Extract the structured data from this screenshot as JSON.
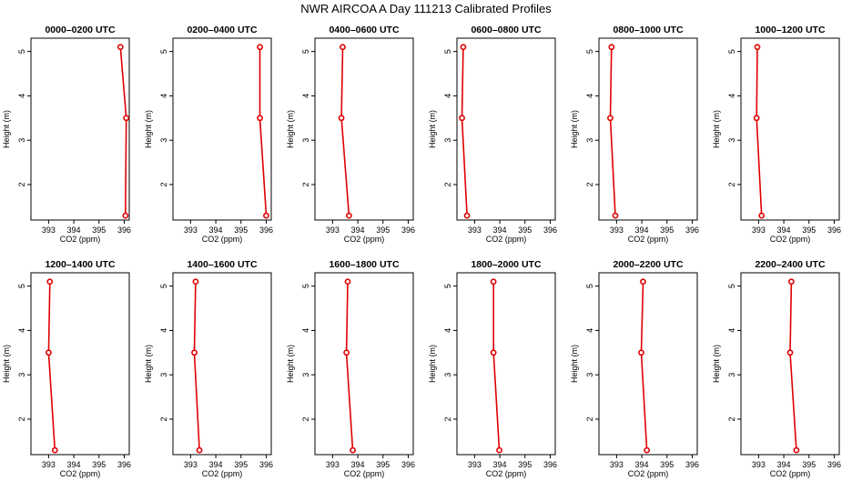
{
  "figure": {
    "title": "NWR AIRCOA A  Day 111213  Calibrated Profiles"
  },
  "chart_data": [
    {
      "type": "line",
      "title": "0000–0200 UTC",
      "xlabel": "CO2 (ppm)",
      "ylabel": "Height (m)",
      "xlim": [
        392.3,
        396.2
      ],
      "ylim": [
        1.2,
        5.3
      ],
      "xticks": [
        393,
        394,
        395,
        396
      ],
      "yticks": [
        2,
        3,
        4,
        5
      ],
      "x": [
        395.85,
        396.08,
        396.05
      ],
      "y": [
        5.1,
        3.5,
        1.3
      ]
    },
    {
      "type": "line",
      "title": "0200–0400 UTC",
      "xlabel": "CO2 (ppm)",
      "ylabel": "Height (m)",
      "xlim": [
        392.3,
        396.2
      ],
      "ylim": [
        1.2,
        5.3
      ],
      "xticks": [
        393,
        394,
        395,
        396
      ],
      "yticks": [
        2,
        3,
        4,
        5
      ],
      "x": [
        395.75,
        395.75,
        396.0
      ],
      "y": [
        5.1,
        3.5,
        1.3
      ]
    },
    {
      "type": "line",
      "title": "0400–0600 UTC",
      "xlabel": "CO2 (ppm)",
      "ylabel": "Height (m)",
      "xlim": [
        392.3,
        396.2
      ],
      "ylim": [
        1.2,
        5.3
      ],
      "xticks": [
        393,
        394,
        395,
        396
      ],
      "yticks": [
        2,
        3,
        4,
        5
      ],
      "x": [
        393.4,
        393.35,
        393.65
      ],
      "y": [
        5.1,
        3.5,
        1.3
      ]
    },
    {
      "type": "line",
      "title": "0600–0800 UTC",
      "xlabel": "CO2 (ppm)",
      "ylabel": "Height (m)",
      "xlim": [
        392.3,
        396.2
      ],
      "ylim": [
        1.2,
        5.3
      ],
      "xticks": [
        393,
        394,
        395,
        396
      ],
      "yticks": [
        2,
        3,
        4,
        5
      ],
      "x": [
        392.55,
        392.5,
        392.7
      ],
      "y": [
        5.1,
        3.5,
        1.3
      ]
    },
    {
      "type": "line",
      "title": "0800–1000 UTC",
      "xlabel": "CO2 (ppm)",
      "ylabel": "Height (m)",
      "xlim": [
        392.3,
        396.2
      ],
      "ylim": [
        1.2,
        5.3
      ],
      "xticks": [
        393,
        394,
        395,
        396
      ],
      "yticks": [
        2,
        3,
        4,
        5
      ],
      "x": [
        392.8,
        392.75,
        392.95
      ],
      "y": [
        5.1,
        3.5,
        1.3
      ]
    },
    {
      "type": "line",
      "title": "1000–1200 UTC",
      "xlabel": "CO2 (ppm)",
      "ylabel": "Height (m)",
      "xlim": [
        392.3,
        396.2
      ],
      "ylim": [
        1.2,
        5.3
      ],
      "xticks": [
        393,
        394,
        395,
        396
      ],
      "yticks": [
        2,
        3,
        4,
        5
      ],
      "x": [
        392.95,
        392.92,
        393.12
      ],
      "y": [
        5.1,
        3.5,
        1.3
      ]
    },
    {
      "type": "line",
      "title": "1200–1400 UTC",
      "xlabel": "CO2 (ppm)",
      "ylabel": "Height (m)",
      "xlim": [
        392.3,
        396.2
      ],
      "ylim": [
        1.2,
        5.3
      ],
      "xticks": [
        393,
        394,
        395,
        396
      ],
      "yticks": [
        2,
        3,
        4,
        5
      ],
      "x": [
        393.05,
        393.0,
        393.25
      ],
      "y": [
        5.1,
        3.5,
        1.3
      ]
    },
    {
      "type": "line",
      "title": "1400–1600 UTC",
      "xlabel": "CO2 (ppm)",
      "ylabel": "Height (m)",
      "xlim": [
        392.3,
        396.2
      ],
      "ylim": [
        1.2,
        5.3
      ],
      "xticks": [
        393,
        394,
        395,
        396
      ],
      "yticks": [
        2,
        3,
        4,
        5
      ],
      "x": [
        393.2,
        393.15,
        393.35
      ],
      "y": [
        5.1,
        3.5,
        1.3
      ]
    },
    {
      "type": "line",
      "title": "1600–1800 UTC",
      "xlabel": "CO2 (ppm)",
      "ylabel": "Height (m)",
      "xlim": [
        392.3,
        396.2
      ],
      "ylim": [
        1.2,
        5.3
      ],
      "xticks": [
        393,
        394,
        395,
        396
      ],
      "yticks": [
        2,
        3,
        4,
        5
      ],
      "x": [
        393.6,
        393.55,
        393.8
      ],
      "y": [
        5.1,
        3.5,
        1.3
      ]
    },
    {
      "type": "line",
      "title": "1800–2000 UTC",
      "xlabel": "CO2 (ppm)",
      "ylabel": "Height (m)",
      "xlim": [
        392.3,
        396.2
      ],
      "ylim": [
        1.2,
        5.3
      ],
      "xticks": [
        393,
        394,
        395,
        396
      ],
      "yticks": [
        2,
        3,
        4,
        5
      ],
      "x": [
        393.75,
        393.75,
        393.98
      ],
      "y": [
        5.1,
        3.5,
        1.3
      ]
    },
    {
      "type": "line",
      "title": "2000–2200 UTC",
      "xlabel": "CO2 (ppm)",
      "ylabel": "Height (m)",
      "xlim": [
        392.3,
        396.2
      ],
      "ylim": [
        1.2,
        5.3
      ],
      "xticks": [
        393,
        394,
        395,
        396
      ],
      "yticks": [
        2,
        3,
        4,
        5
      ],
      "x": [
        394.05,
        393.98,
        394.2
      ],
      "y": [
        5.1,
        3.5,
        1.3
      ]
    },
    {
      "type": "line",
      "title": "2200–2400 UTC",
      "xlabel": "CO2 (ppm)",
      "ylabel": "Height (m)",
      "xlim": [
        392.3,
        396.2
      ],
      "ylim": [
        1.2,
        5.3
      ],
      "xticks": [
        393,
        394,
        395,
        396
      ],
      "yticks": [
        2,
        3,
        4,
        5
      ],
      "x": [
        394.3,
        394.25,
        394.5
      ],
      "y": [
        5.1,
        3.5,
        1.3
      ]
    }
  ]
}
